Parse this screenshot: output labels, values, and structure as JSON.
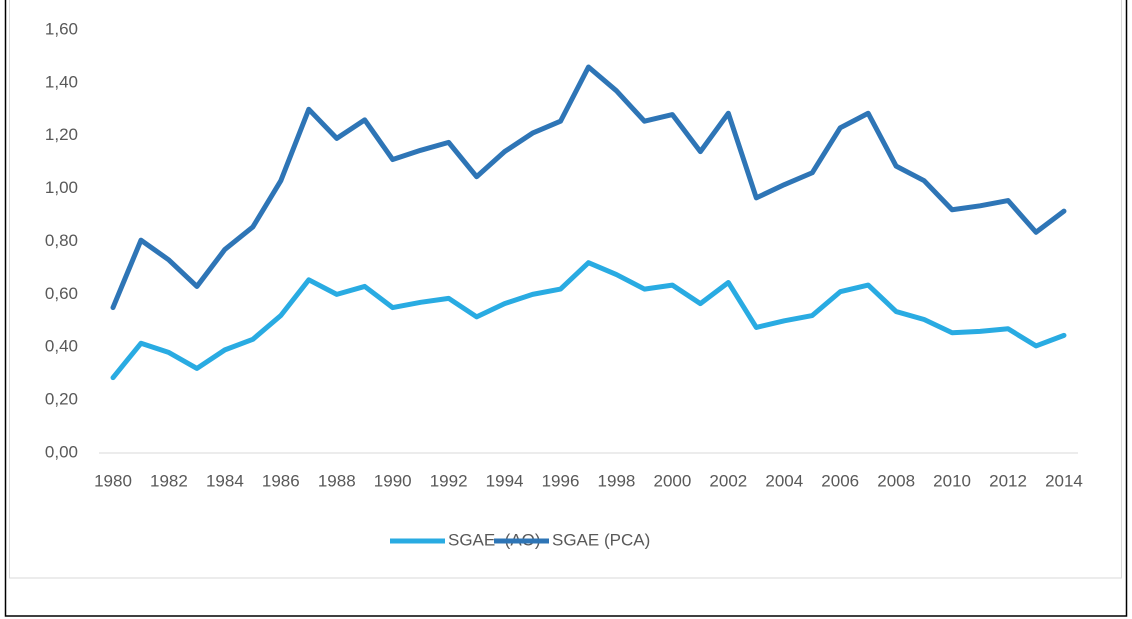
{
  "chart_data": {
    "type": "line",
    "categories": [
      "1980",
      null,
      "1982",
      null,
      "1984",
      null,
      "1986",
      null,
      "1988",
      null,
      "1990",
      null,
      "1992",
      null,
      "1994",
      null,
      "1996",
      null,
      "1998",
      null,
      "2000",
      null,
      "2002",
      null,
      "2004",
      null,
      "2006",
      null,
      "2008",
      null,
      "2010",
      null,
      "2012",
      null,
      "2014"
    ],
    "series": [
      {
        "name": "SGAE  (AO)",
        "color": "#29abe2",
        "values": [
          0.285,
          0.415,
          0.38,
          0.32,
          0.39,
          0.43,
          0.52,
          0.655,
          0.6,
          0.63,
          0.55,
          0.57,
          0.585,
          0.515,
          0.565,
          0.6,
          0.62,
          0.72,
          0.675,
          0.62,
          0.635,
          0.565,
          0.645,
          0.475,
          0.5,
          0.52,
          0.61,
          0.635,
          0.535,
          0.505,
          0.455,
          0.46,
          0.47,
          0.405,
          0.445
        ]
      },
      {
        "name": "SGAE (PCA)",
        "color": "#2e75b6",
        "values": [
          0.55,
          0.805,
          0.73,
          0.63,
          0.77,
          0.855,
          1.03,
          1.3,
          1.19,
          1.26,
          1.11,
          1.145,
          1.175,
          1.045,
          1.14,
          1.21,
          1.255,
          1.46,
          1.37,
          1.255,
          1.28,
          1.14,
          1.285,
          0.965,
          1.015,
          1.06,
          1.23,
          1.285,
          1.085,
          1.03,
          0.92,
          0.935,
          0.955,
          0.835,
          0.915
        ]
      }
    ],
    "ylim": [
      0,
      1.6
    ],
    "yticks": [
      {
        "value": 0,
        "label": "0,00"
      },
      {
        "value": 0.2,
        "label": "0,20"
      },
      {
        "value": 0.4,
        "label": "0,40"
      },
      {
        "value": 0.6,
        "label": "0,60"
      },
      {
        "value": 0.8,
        "label": "0,80"
      },
      {
        "value": 1,
        "label": "1,00"
      },
      {
        "value": 1.2,
        "label": "1,20"
      },
      {
        "value": 1.4,
        "label": "1,40"
      },
      {
        "value": 1.6,
        "label": "1,60"
      }
    ],
    "grid": false,
    "legend": "bottom"
  }
}
